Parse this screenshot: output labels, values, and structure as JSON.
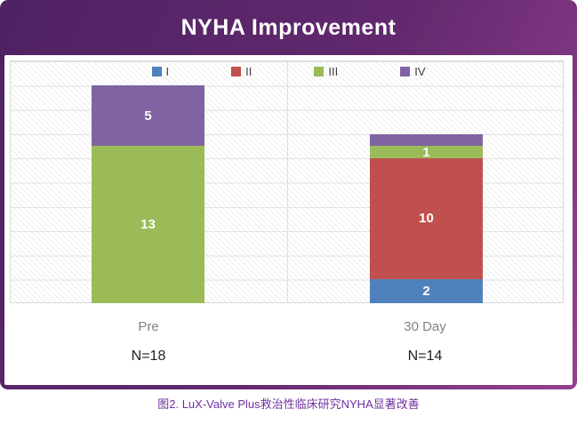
{
  "header": {
    "title": "NYHA Improvement"
  },
  "chart_data": {
    "type": "bar",
    "stacked": true,
    "title": "NYHA Improvement",
    "categories": [
      "Pre",
      "30 Day"
    ],
    "n_labels": [
      "N=18",
      "N=14"
    ],
    "series": [
      {
        "name": "I",
        "color": "#4F81BD",
        "values": [
          0,
          2
        ],
        "show_value_labels": [
          false,
          true
        ]
      },
      {
        "name": "II",
        "color": "#C0504D",
        "values": [
          0,
          10
        ],
        "show_value_labels": [
          false,
          true
        ]
      },
      {
        "name": "III",
        "color": "#9BBB59",
        "values": [
          13,
          1
        ],
        "show_value_labels": [
          true,
          true
        ]
      },
      {
        "name": "IV",
        "color": "#8064A2",
        "values": [
          5,
          1
        ],
        "show_value_labels": [
          true,
          false
        ]
      }
    ],
    "floating_label": "1",
    "ylim": [
      0,
      20
    ],
    "gridline_step": 2,
    "grid": true,
    "legend_position": "top",
    "xlabel": "",
    "ylabel": ""
  },
  "caption": {
    "text": "图2. LuX-Valve Plus救治性临床研究NYHA显著改善"
  }
}
